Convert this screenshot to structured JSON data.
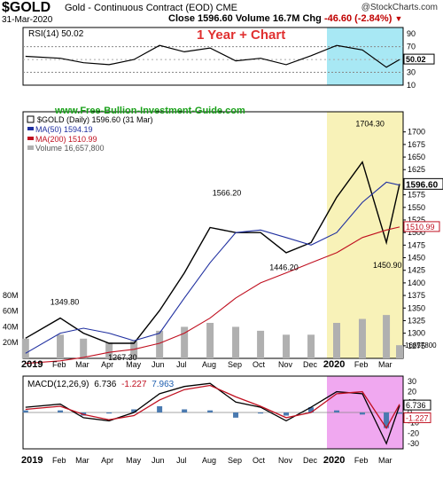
{
  "header": {
    "symbol": "$GOLD",
    "name": "Gold - Continuous Contract (EOD)",
    "exchange": "CME",
    "date": "31-Mar-2020",
    "close_label": "Close",
    "close_value": "1596.60",
    "volume_label": "Volume",
    "volume_value": "16.7M",
    "chg_label": "Chg",
    "chg_value": "-46.60 (-2.84%)",
    "credit": "@StockCharts.com"
  },
  "annotations": {
    "chart_banner": "1 Year + Chart",
    "website": "www.Free-Bullion-Investment-Guide.com"
  },
  "colors": {
    "price_up": "#000000",
    "price_down": "#c00000",
    "ma50": "#2030a0",
    "ma200": "#c01020",
    "volume": "#b0b0b0",
    "rsi_fill": "#4a9a4a",
    "highlight_cyan": "#a8e8f4",
    "highlight_yellow": "#f8f2b8",
    "highlight_magenta": "#f0a8f0",
    "macd_line": "#000000",
    "macd_signal": "#c01020",
    "macd_hist": "#4a7ab0"
  },
  "chart_data": [
    {
      "type": "line",
      "panel": "RSI",
      "legend": "RSI(14) 50.02",
      "last_value_label": "50.02",
      "ylim": [
        10,
        100
      ],
      "yticks": [
        "90",
        "70",
        "50",
        "30",
        "10"
      ],
      "reference_lines": [
        70,
        30
      ],
      "x": [
        "2019-01",
        "2019-02",
        "2019-03",
        "2019-04",
        "2019-05",
        "2019-06",
        "2019-07",
        "2019-08",
        "2019-09",
        "2019-10",
        "2019-11",
        "2019-12",
        "2020-01",
        "2020-02",
        "2020-03",
        "2020-03-31"
      ],
      "values": [
        55,
        52,
        45,
        42,
        50,
        72,
        62,
        68,
        48,
        52,
        42,
        56,
        72,
        65,
        38,
        50.02
      ]
    },
    {
      "type": "line",
      "panel": "Price",
      "legend": [
        "$GOLD (Daily) 1596.60 (31 Mar)",
        "MA(50) 1594.19",
        "MA(200) 1510.99",
        "Volume 16,657,800"
      ],
      "last_price_label": "1596.60",
      "last_ma200_label": "1510.99",
      "ylim": [
        1250,
        1740
      ],
      "yticks": [
        "1700",
        "1675",
        "1650",
        "1625",
        "1600",
        "1575",
        "1550",
        "1525",
        "1500",
        "1475",
        "1450",
        "1425",
        "1400",
        "1375",
        "1350",
        "1325",
        "1300",
        "1275"
      ],
      "price_labels": [
        {
          "text": "1349.80",
          "x": "2019-02-20",
          "y": 1349.8
        },
        {
          "text": "1267.30",
          "x": "2019-05-01",
          "y": 1267.3
        },
        {
          "text": "1566.20",
          "x": "2019-09-04",
          "y": 1566.2
        },
        {
          "text": "1446.20",
          "x": "2019-11-12",
          "y": 1446.2
        },
        {
          "text": "1704.30",
          "x": "2020-02-24",
          "y": 1704.3
        },
        {
          "text": "1450.90",
          "x": "2020-03-16",
          "y": 1450.9
        }
      ],
      "x": [
        "2019-01",
        "2019-02",
        "2019-03",
        "2019-04",
        "2019-05",
        "2019-06",
        "2019-07",
        "2019-08",
        "2019-09",
        "2019-10",
        "2019-11",
        "2019-12",
        "2020-01",
        "2020-02",
        "2020-03",
        "2020-03-31"
      ],
      "series": [
        {
          "name": "$GOLD (Daily)",
          "values": [
            1290,
            1330,
            1300,
            1280,
            1280,
            1345,
            1420,
            1510,
            1500,
            1500,
            1460,
            1480,
            1570,
            1640,
            1480,
            1596.6
          ]
        },
        {
          "name": "MA(50)",
          "values": [
            1260,
            1300,
            1310,
            1300,
            1285,
            1300,
            1370,
            1440,
            1500,
            1505,
            1490,
            1475,
            1500,
            1560,
            1600,
            1594.19
          ]
        },
        {
          "name": "MA(200)",
          "values": [
            1240,
            1245,
            1252,
            1262,
            1268,
            1280,
            1300,
            1330,
            1370,
            1400,
            1420,
            1440,
            1460,
            1490,
            1505,
            1510.99
          ]
        }
      ]
    },
    {
      "type": "bar",
      "panel": "Volume",
      "legend": "Volume 16,657,800",
      "last_value_label": "16657800",
      "yticks": [
        "80M",
        "60M",
        "40M",
        "20M"
      ],
      "ylim": [
        0,
        90
      ],
      "x": [
        "2019-01",
        "2019-02",
        "2019-03",
        "2019-04",
        "2019-05",
        "2019-06",
        "2019-07",
        "2019-08",
        "2019-09",
        "2019-10",
        "2019-11",
        "2019-12",
        "2020-01",
        "2020-02",
        "2020-03",
        "2020-03-31"
      ],
      "values": [
        25,
        30,
        25,
        20,
        22,
        35,
        40,
        45,
        40,
        35,
        30,
        30,
        45,
        50,
        55,
        16.7
      ]
    },
    {
      "type": "line",
      "panel": "MACD",
      "legend": [
        "MACD(12,26,9)",
        "6.736",
        "-1.227",
        "7.963"
      ],
      "last_value_labels": [
        "6.736",
        "-1.227"
      ],
      "ylim": [
        -35,
        35
      ],
      "yticks": [
        "30",
        "20",
        "10",
        "0",
        "-10",
        "-20",
        "-30"
      ],
      "x": [
        "2019-01",
        "2019-02",
        "2019-03",
        "2019-04",
        "2019-05",
        "2019-06",
        "2019-07",
        "2019-08",
        "2019-09",
        "2019-10",
        "2019-11",
        "2019-12",
        "2020-01",
        "2020-02",
        "2020-03",
        "2020-03-31"
      ],
      "series": [
        {
          "name": "MACD",
          "values": [
            5,
            8,
            -5,
            -8,
            0,
            18,
            25,
            28,
            10,
            5,
            -8,
            5,
            20,
            18,
            -30,
            6.736
          ]
        },
        {
          "name": "Signal",
          "values": [
            3,
            6,
            -2,
            -7,
            -3,
            12,
            22,
            26,
            15,
            6,
            -5,
            0,
            18,
            20,
            -15,
            7.963
          ]
        },
        {
          "name": "Histogram",
          "values": [
            2,
            2,
            -3,
            -1,
            3,
            6,
            3,
            2,
            -5,
            -1,
            -3,
            5,
            2,
            -2,
            -15,
            -1.227
          ]
        }
      ]
    }
  ],
  "axis": {
    "months": [
      "2019",
      "Feb",
      "Mar",
      "Apr",
      "May",
      "Jun",
      "Jul",
      "Aug",
      "Sep",
      "Oct",
      "Nov",
      "Dec",
      "2020",
      "Feb",
      "Mar"
    ]
  }
}
